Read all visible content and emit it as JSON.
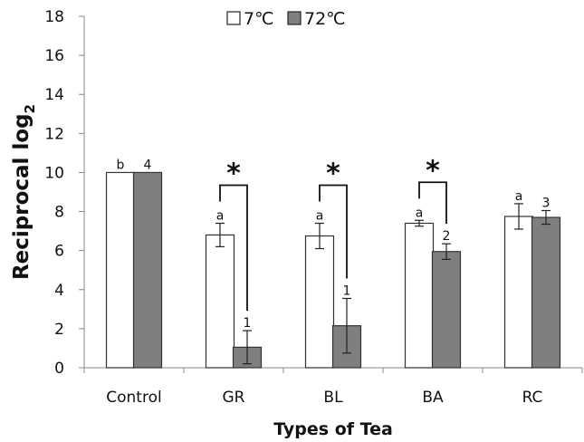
{
  "chart_data": {
    "type": "bar",
    "categories": [
      "Control",
      "GR",
      "BL",
      "BA",
      "RC"
    ],
    "series": [
      {
        "name": "7℃",
        "color": "#ffffff",
        "values": [
          10,
          6.8,
          6.75,
          7.4,
          7.75
        ],
        "errors": [
          0,
          0.6,
          0.65,
          0.15,
          0.65
        ],
        "labels": [
          "b",
          "a",
          "a",
          "a",
          "a"
        ]
      },
      {
        "name": "72℃",
        "color": "#7f7f7f",
        "values": [
          10,
          1.05,
          2.15,
          5.95,
          7.7
        ],
        "errors": [
          0,
          0.85,
          1.4,
          0.4,
          0.35
        ],
        "labels": [
          "4",
          "1",
          "1",
          "2",
          "3"
        ]
      }
    ],
    "significance": [
      {
        "category": "GR",
        "label": "*"
      },
      {
        "category": "BL",
        "label": "*"
      },
      {
        "category": "BA",
        "label": "*"
      }
    ],
    "ylim": [
      0,
      18
    ],
    "yticks": [
      "0",
      "2",
      "4",
      "6",
      "8",
      "10",
      "12",
      "14",
      "16",
      "18"
    ],
    "xlabel": "Types of Tea",
    "ylabel": "Reciprocal log",
    "ylabel_subscript": "2",
    "legend_position": "top",
    "grid": false
  }
}
